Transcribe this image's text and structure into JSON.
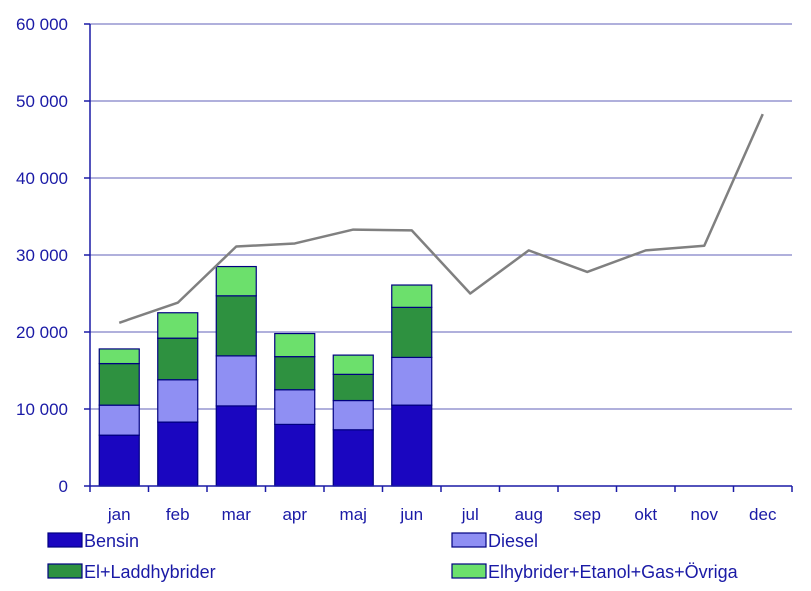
{
  "chart_data": {
    "type": "bar",
    "stacked": true,
    "categories": [
      "jan",
      "feb",
      "mar",
      "apr",
      "maj",
      "jun",
      "jul",
      "aug",
      "sep",
      "okt",
      "nov",
      "dec"
    ],
    "series": [
      {
        "name": "Bensin",
        "type": "bar",
        "color": "#1a06c0",
        "values": [
          6600,
          8300,
          10400,
          8000,
          7300,
          10500,
          null,
          null,
          null,
          null,
          null,
          null
        ]
      },
      {
        "name": "Diesel",
        "type": "bar",
        "color": "#8f8ff3",
        "values": [
          3900,
          5500,
          6500,
          4500,
          3800,
          6200,
          null,
          null,
          null,
          null,
          null,
          null
        ]
      },
      {
        "name": "El+Laddhybrider",
        "type": "bar",
        "color": "#2e9140",
        "values": [
          5400,
          5400,
          7800,
          4300,
          3400,
          6500,
          null,
          null,
          null,
          null,
          null,
          null
        ]
      },
      {
        "name": "Elhybrider+Etanol+Gas+Övriga",
        "type": "bar",
        "color": "#6ce06c",
        "values": [
          1900,
          3300,
          3800,
          3000,
          2500,
          2900,
          null,
          null,
          null,
          null,
          null,
          null
        ]
      },
      {
        "name": "",
        "type": "line",
        "color": "#808080",
        "values": [
          21200,
          23800,
          31100,
          31500,
          33300,
          33200,
          25000,
          30600,
          27800,
          30600,
          31200,
          48300
        ]
      }
    ],
    "ylim": [
      0,
      60000
    ],
    "yticks": [
      0,
      10000,
      20000,
      30000,
      40000,
      50000,
      60000
    ],
    "ytick_labels": [
      "0",
      "10 000",
      "20 000",
      "30 000",
      "40 000",
      "50 000",
      "60 000"
    ],
    "grid": true,
    "legend_position": "bottom"
  },
  "colors": {
    "axis_text": "#1a1aa6",
    "grid": "#8080c8",
    "bar_outline": "#000080"
  }
}
